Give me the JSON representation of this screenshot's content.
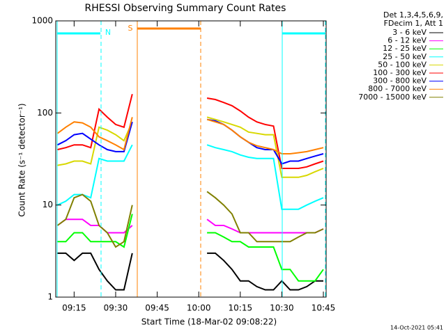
{
  "chart_data": {
    "type": "line",
    "title": "RHESSI Observing Summary Count Rates",
    "xlabel": "Start Time (18-Mar-02 09:08:22)",
    "ylabel": "Count Rate (s⁻¹ detector⁻¹)",
    "legend_title": [
      "Det 1,3,4,5,6,9,",
      "FDecim 1, Att 1"
    ],
    "footer": "14-Oct-2021 05:41",
    "annotations": [
      "N",
      "S"
    ],
    "log_y": true,
    "xlim": [
      "09:08:22",
      "10:46"
    ],
    "xticks": [
      "09:15",
      "09:30",
      "09:45",
      "10:00",
      "10:15",
      "10:30",
      "10:45"
    ],
    "ylim": [
      1,
      1000
    ],
    "yticks": [
      1,
      10,
      100,
      1000
    ],
    "x": [
      "09:09",
      "09:12",
      "09:15",
      "09:18",
      "09:21",
      "09:24",
      "09:27",
      "09:30",
      "09:33",
      "09:36",
      "09:39",
      "09:42",
      "09:45",
      "09:48",
      "09:51",
      "09:54",
      "09:57",
      "10:00",
      "10:03",
      "10:06",
      "10:09",
      "10:12",
      "10:15",
      "10:18",
      "10:21",
      "10:24",
      "10:27",
      "10:30",
      "10:33",
      "10:36",
      "10:39",
      "10:42",
      "10:45"
    ],
    "series": [
      {
        "name": "3 - 6 keV",
        "color": "#000000",
        "values": [
          3,
          3,
          2.5,
          3,
          3,
          2,
          1.5,
          1.2,
          1.2,
          3,
          null,
          null,
          null,
          null,
          null,
          null,
          null,
          null,
          3,
          3,
          2.5,
          2,
          1.5,
          1.5,
          1.3,
          1.2,
          1.2,
          1.5,
          1.2,
          1.2,
          1.3,
          1.5,
          1.5
        ]
      },
      {
        "name": "6 - 12 keV",
        "color": "#ff00ff",
        "values": [
          6,
          7,
          7,
          7,
          6,
          6,
          5,
          5,
          5,
          6,
          null,
          null,
          null,
          null,
          null,
          null,
          null,
          null,
          7,
          6,
          6,
          5.5,
          5,
          5,
          5,
          5,
          5,
          5,
          5,
          5,
          5,
          5,
          5.5
        ]
      },
      {
        "name": "12 - 25 keV",
        "color": "#00ff00",
        "values": [
          4,
          4,
          5,
          5,
          4,
          4,
          4,
          4,
          3.5,
          8,
          null,
          null,
          null,
          null,
          null,
          null,
          null,
          null,
          5,
          5,
          4.5,
          4,
          4,
          3.5,
          3.5,
          3.5,
          3.5,
          2,
          2,
          1.5,
          1.5,
          1.5,
          2
        ]
      },
      {
        "name": "25 - 50 keV",
        "color": "#00ffff",
        "values": [
          10,
          11,
          13,
          13,
          12,
          32,
          30,
          30,
          30,
          45,
          null,
          null,
          null,
          null,
          null,
          null,
          null,
          null,
          45,
          42,
          40,
          38,
          35,
          33,
          32,
          32,
          32,
          9,
          9,
          9,
          10,
          11,
          12
        ]
      },
      {
        "name": "50 - 100 keV",
        "color": "#d8d800",
        "values": [
          27,
          28,
          30,
          30,
          28,
          70,
          65,
          58,
          50,
          80,
          null,
          null,
          null,
          null,
          null,
          null,
          null,
          null,
          90,
          85,
          80,
          75,
          70,
          62,
          60,
          58,
          58,
          20,
          20,
          20,
          21,
          23,
          25
        ]
      },
      {
        "name": "100 - 300 keV",
        "color": "#ff0000",
        "values": [
          40,
          42,
          45,
          45,
          42,
          110,
          90,
          75,
          70,
          160,
          null,
          null,
          null,
          null,
          null,
          null,
          null,
          null,
          145,
          140,
          130,
          120,
          105,
          90,
          80,
          75,
          72,
          25,
          25,
          25,
          26,
          28,
          30
        ]
      },
      {
        "name": "300 - 800 keV",
        "color": "#0000ff",
        "values": [
          45,
          50,
          58,
          60,
          52,
          45,
          40,
          38,
          38,
          80,
          null,
          null,
          null,
          null,
          null,
          null,
          null,
          null,
          85,
          82,
          75,
          65,
          55,
          48,
          42,
          40,
          40,
          28,
          30,
          30,
          32,
          34,
          36
        ]
      },
      {
        "name": "800 - 7000 keV",
        "color": "#ff8000",
        "values": [
          60,
          70,
          80,
          78,
          70,
          55,
          50,
          45,
          40,
          90,
          null,
          null,
          null,
          null,
          null,
          null,
          null,
          null,
          85,
          80,
          75,
          65,
          55,
          48,
          44,
          42,
          40,
          36,
          36,
          37,
          38,
          40,
          42
        ]
      },
      {
        "name": "7000 - 15000 keV",
        "color": "#808000",
        "values": [
          6,
          7,
          12,
          13,
          11,
          6,
          5,
          3.5,
          4,
          10,
          null,
          null,
          null,
          null,
          null,
          null,
          null,
          null,
          14,
          12,
          10,
          8,
          5,
          5,
          4,
          4,
          4,
          4,
          4,
          4.5,
          5,
          5,
          5.5
        ]
      }
    ]
  }
}
